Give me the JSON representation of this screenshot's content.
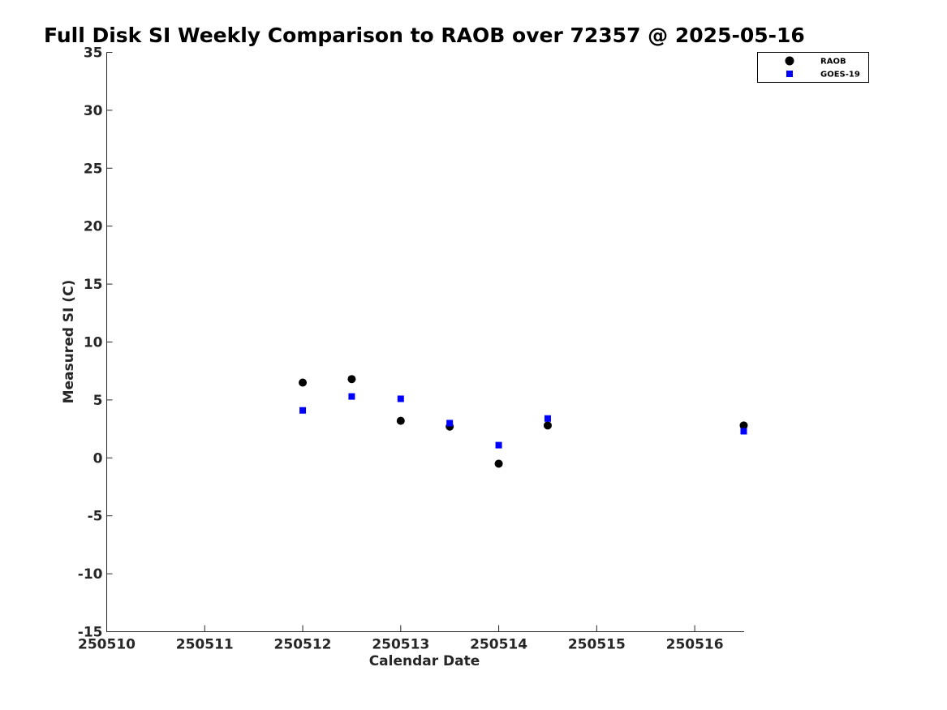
{
  "chart_data": {
    "type": "scatter",
    "title": "Full Disk SI Weekly Comparison to RAOB over 72357 @ 2025-05-16",
    "xlabel": "Calendar Date",
    "ylabel": "Measured SI (C)",
    "xlim": [
      250510,
      250516.5
    ],
    "ylim": [
      -15,
      35
    ],
    "xticks": [
      250510,
      250511,
      250512,
      250513,
      250514,
      250515,
      250516
    ],
    "xtick_labels": [
      "250510",
      "250511",
      "250512",
      "250513",
      "250514",
      "250515",
      "250516"
    ],
    "yticks": [
      -15,
      -10,
      -5,
      0,
      5,
      10,
      15,
      20,
      25,
      30,
      35
    ],
    "ytick_labels": [
      "-15",
      "-10",
      "-5",
      "0",
      "5",
      "10",
      "15",
      "20",
      "25",
      "30",
      "35"
    ],
    "grid": false,
    "legend_position": "top-right",
    "series": [
      {
        "name": "RAOB",
        "marker": "circle",
        "color": "#000000",
        "x": [
          250512,
          250512.5,
          250513,
          250513.5,
          250514,
          250514.5,
          250516.5
        ],
        "y": [
          6.5,
          6.8,
          3.2,
          2.7,
          -0.5,
          2.8,
          2.8
        ]
      },
      {
        "name": "GOES-19",
        "marker": "square",
        "color": "#0000ff",
        "x": [
          250512,
          250512.5,
          250513,
          250513.5,
          250514,
          250514.5,
          250516.5
        ],
        "y": [
          4.1,
          5.3,
          5.1,
          3.0,
          1.1,
          3.4,
          2.3
        ]
      }
    ]
  }
}
